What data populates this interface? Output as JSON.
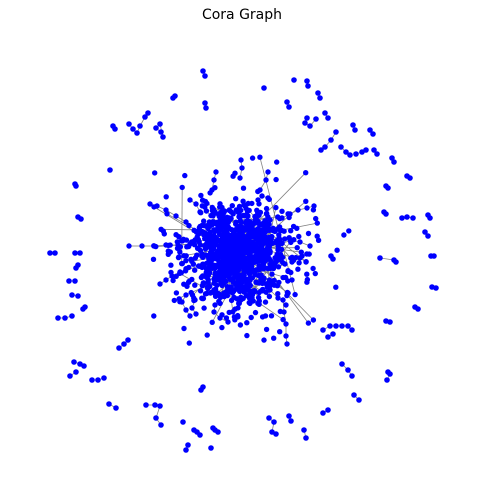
{
  "title": "Cora Graph",
  "graph": {
    "node_color": "#0000ff",
    "edge_color": "#808080"
  }
}
